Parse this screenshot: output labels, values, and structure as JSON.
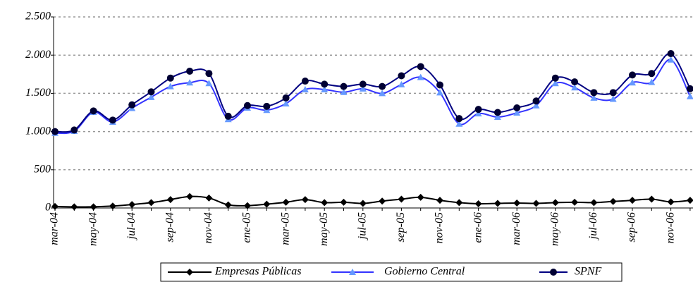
{
  "chart_data": {
    "type": "line",
    "categories": [
      "mar-04",
      null,
      "may-04",
      null,
      "jul-04",
      null,
      "sep-04",
      null,
      "nov-04",
      null,
      "ene-05",
      null,
      "mar-05",
      null,
      "may-05",
      null,
      "jul-05",
      null,
      "sep-05",
      null,
      "nov-05",
      null,
      "ene-06",
      null,
      "mar-06",
      null,
      "may-06",
      null,
      "jul-06",
      null,
      "sep-06",
      null,
      "nov-06",
      null
    ],
    "series": [
      {
        "name": "Empresas Públicas",
        "color": "#000000",
        "marker": "diamond",
        "values": [
          20,
          15,
          15,
          25,
          45,
          70,
          110,
          150,
          130,
          40,
          30,
          50,
          75,
          110,
          70,
          75,
          60,
          90,
          115,
          140,
          100,
          70,
          55,
          60,
          65,
          60,
          70,
          75,
          70,
          85,
          100,
          115,
          80,
          100
        ]
      },
      {
        "name": "Gobierno Central",
        "color": "#3333ff",
        "marker": "triangle",
        "values": [
          980,
          1005,
          1255,
          1125,
          1305,
          1450,
          1590,
          1640,
          1630,
          1160,
          1310,
          1280,
          1365,
          1550,
          1550,
          1515,
          1560,
          1500,
          1615,
          1710,
          1510,
          1100,
          1235,
          1190,
          1245,
          1340,
          1630,
          1575,
          1440,
          1425,
          1640,
          1645,
          1940,
          1460
        ]
      },
      {
        "name": "SPNF",
        "color": "#000080",
        "marker": "circle",
        "values": [
          1000,
          1020,
          1270,
          1150,
          1350,
          1520,
          1700,
          1790,
          1760,
          1200,
          1340,
          1330,
          1440,
          1660,
          1620,
          1590,
          1620,
          1590,
          1730,
          1850,
          1610,
          1170,
          1290,
          1250,
          1310,
          1400,
          1700,
          1650,
          1510,
          1510,
          1740,
          1760,
          2020,
          1560
        ]
      }
    ],
    "ylim": [
      0,
      2500
    ],
    "yticks": [
      0,
      500,
      {
        "value": 1000,
        "label": "1.000"
      },
      {
        "value": 1500,
        "label": "1.500"
      },
      {
        "value": 2000,
        "label": "2.000"
      },
      {
        "value": 2500,
        "label": "2.500"
      }
    ],
    "grid": true,
    "legend": "bottom"
  }
}
